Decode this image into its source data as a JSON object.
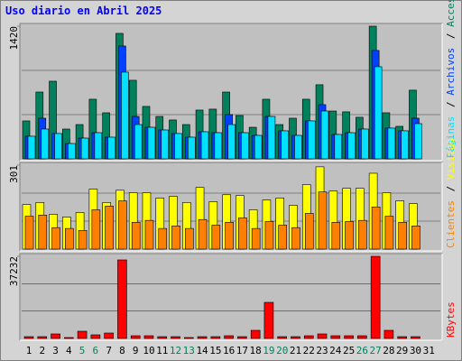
{
  "title": "Uso diario en Abril 2025",
  "legend_separator": "/",
  "categories": [
    "1",
    "2",
    "3",
    "4",
    "5",
    "6",
    "7",
    "8",
    "9",
    "10",
    "11",
    "12",
    "13",
    "14",
    "15",
    "16",
    "17",
    "18",
    "19",
    "20",
    "21",
    "22",
    "23",
    "24",
    "25",
    "26",
    "27",
    "28",
    "29",
    "30",
    "31"
  ],
  "category_colors": [
    "#000000",
    "#000000",
    "#000000",
    "#000000",
    "#00805c",
    "#00805c",
    "#000000",
    "#000000",
    "#000000",
    "#000000",
    "#000000",
    "#00805c",
    "#00805c",
    "#000000",
    "#000000",
    "#000000",
    "#000000",
    "#000000",
    "#00805c",
    "#00805c",
    "#000000",
    "#000000",
    "#000000",
    "#000000",
    "#000000",
    "#00805c",
    "#00805c",
    "#000000",
    "#000000",
    "#000000",
    "#000000"
  ],
  "chart_data": [
    {
      "type": "bar",
      "ylim": [
        0,
        1420
      ],
      "yticks": [
        1420
      ],
      "grid_divisions": 3,
      "series": [
        {
          "name": "Accesos",
          "color": "#00805c",
          "values": [
            406,
            715,
            831,
            319,
            367,
            638,
            493,
            1343,
            841,
            561,
            454,
            416,
            367,
            522,
            532,
            715,
            464,
            338,
            638,
            367,
            435,
            638,
            793,
            512,
            503,
            445,
            1420,
            493,
            348,
            735,
            null
          ]
        },
        {
          "name": "Archivos",
          "color": "#0040ff",
          "values": [
            242,
            435,
            271,
            164,
            222,
            280,
            232,
            1208,
            454,
            338,
            309,
            271,
            232,
            290,
            280,
            474,
            280,
            251,
            454,
            300,
            251,
            406,
            580,
            261,
            280,
            319,
            1160,
            329,
            300,
            435,
            null
          ]
        },
        {
          "name": "Páginas",
          "color": "#00e0ff",
          "values": [
            242,
            319,
            271,
            164,
            222,
            280,
            232,
            928,
            367,
            338,
            309,
            271,
            232,
            290,
            280,
            367,
            280,
            251,
            454,
            300,
            251,
            406,
            512,
            261,
            280,
            319,
            986,
            329,
            300,
            377,
            null
          ]
        }
      ]
    },
    {
      "type": "bar",
      "ylim": [
        0,
        301
      ],
      "yticks": [
        301
      ],
      "grid_divisions": 3,
      "series": [
        {
          "name": "Visitas",
          "color": "#ffff00",
          "values": [
            160,
            167,
            125,
            115,
            131,
            215,
            167,
            211,
            202,
            202,
            183,
            189,
            167,
            221,
            170,
            195,
            192,
            141,
            176,
            183,
            157,
            231,
            295,
            208,
            218,
            218,
            272,
            202,
            173,
            163,
            null
          ]
        },
        {
          "name": "Clientes",
          "color": "#ff8000",
          "values": [
            118,
            122,
            77,
            74,
            67,
            141,
            154,
            173,
            96,
            103,
            74,
            83,
            74,
            106,
            86,
            96,
            112,
            74,
            99,
            86,
            77,
            128,
            205,
            96,
            99,
            103,
            151,
            118,
            96,
            83,
            null
          ]
        }
      ]
    },
    {
      "type": "bar",
      "ylim": [
        0,
        37232
      ],
      "yticks": [
        37232
      ],
      "grid_divisions": 3,
      "series": [
        {
          "name": "KBytes",
          "color": "#ff0000",
          "values": [
            818,
            818,
            2046,
            409,
            3273,
            1636,
            2455,
            35595,
            1227,
            1227,
            818,
            818,
            409,
            818,
            818,
            1227,
            818,
            3682,
            16365,
            818,
            818,
            1227,
            2046,
            1227,
            1227,
            1227,
            37232,
            3682,
            818,
            818,
            null
          ]
        }
      ]
    }
  ]
}
